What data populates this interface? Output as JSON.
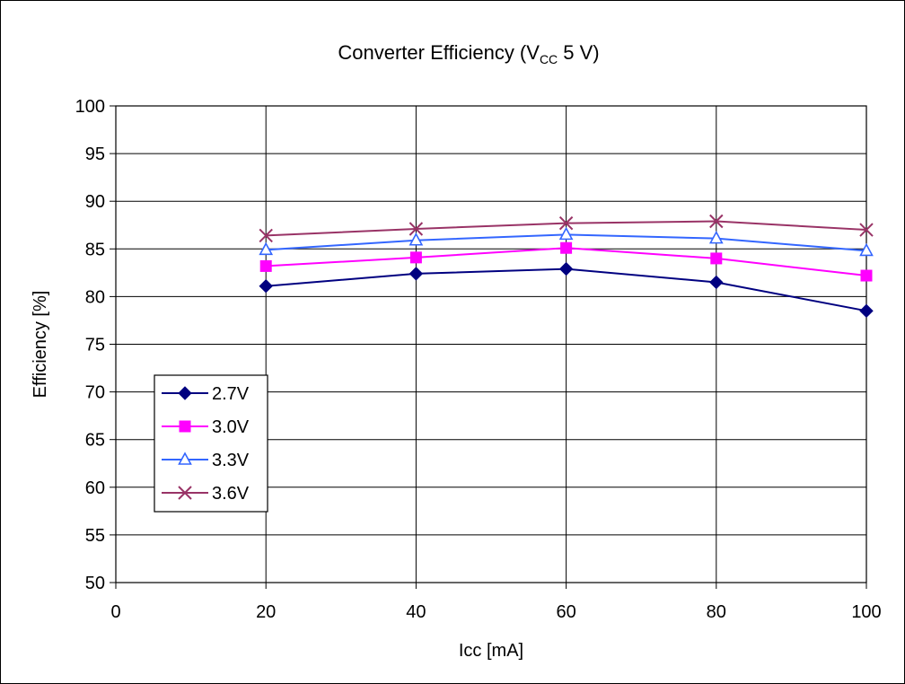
{
  "chart_data": {
    "type": "line",
    "title_main": "Converter Efficiency (V",
    "title_sub": "CC",
    "title_tail": " 5 V)",
    "xlabel": "Icc [mA]",
    "ylabel": "Efficiency [%]",
    "xlim": [
      0,
      100
    ],
    "ylim": [
      50,
      100
    ],
    "xticks": [
      0,
      20,
      40,
      60,
      80,
      100
    ],
    "yticks": [
      50,
      55,
      60,
      65,
      70,
      75,
      80,
      85,
      90,
      95,
      100
    ],
    "grid": true,
    "legend_position": "left-middle",
    "x": [
      20,
      40,
      60,
      80,
      100
    ],
    "series": [
      {
        "name": "2.7V",
        "values": [
          81.1,
          82.4,
          82.9,
          81.5,
          78.5
        ],
        "color": "#000080",
        "marker": "diamond"
      },
      {
        "name": "3.0V",
        "values": [
          83.2,
          84.1,
          85.1,
          84.0,
          82.2
        ],
        "color": "#FF00FF",
        "marker": "square"
      },
      {
        "name": "3.3V",
        "values": [
          84.9,
          85.9,
          86.5,
          86.1,
          84.8
        ],
        "color": "#3366FF",
        "marker": "triangle"
      },
      {
        "name": "3.6V",
        "values": [
          86.4,
          87.1,
          87.7,
          87.9,
          87.0
        ],
        "color": "#993366",
        "marker": "x"
      }
    ]
  }
}
